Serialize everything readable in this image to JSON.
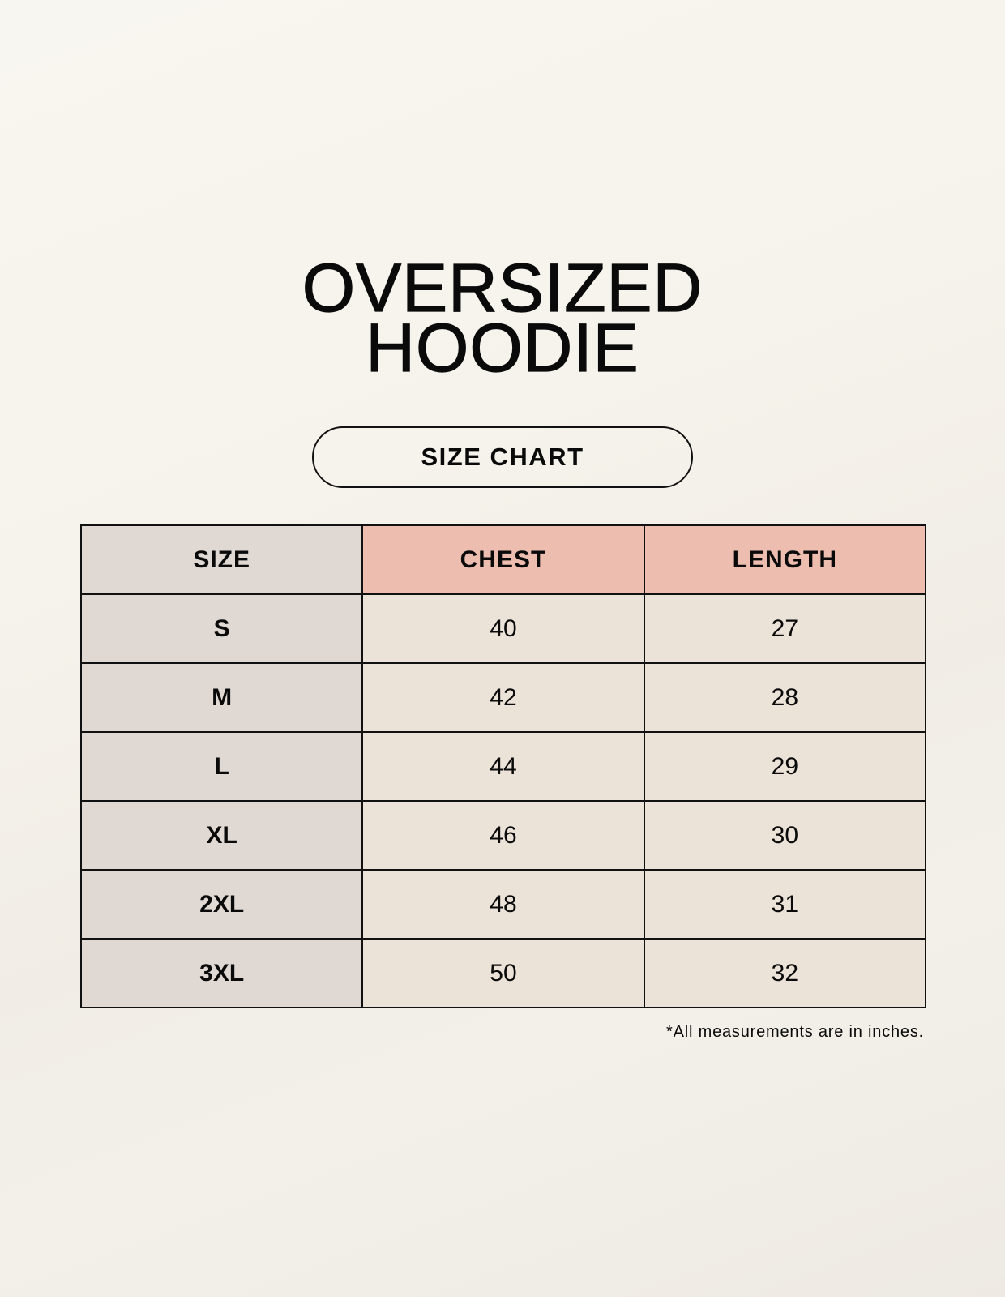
{
  "title": {
    "line1": "OVERSIZED",
    "line2": "HOODIE"
  },
  "badge": "SIZE CHART",
  "table": {
    "headers": [
      "SIZE",
      "CHEST",
      "LENGTH"
    ],
    "rows": [
      [
        "S",
        "40",
        "27"
      ],
      [
        "M",
        "42",
        "28"
      ],
      [
        "L",
        "44",
        "29"
      ],
      [
        "XL",
        "46",
        "30"
      ],
      [
        "2XL",
        "48",
        "31"
      ],
      [
        "3XL",
        "50",
        "32"
      ]
    ]
  },
  "footnote": "*All measurements are in inches.",
  "colors": {
    "size_column": "#e0d8d3",
    "measure_header": "#edbdb0",
    "measure_cells": "#ebe2d8"
  }
}
